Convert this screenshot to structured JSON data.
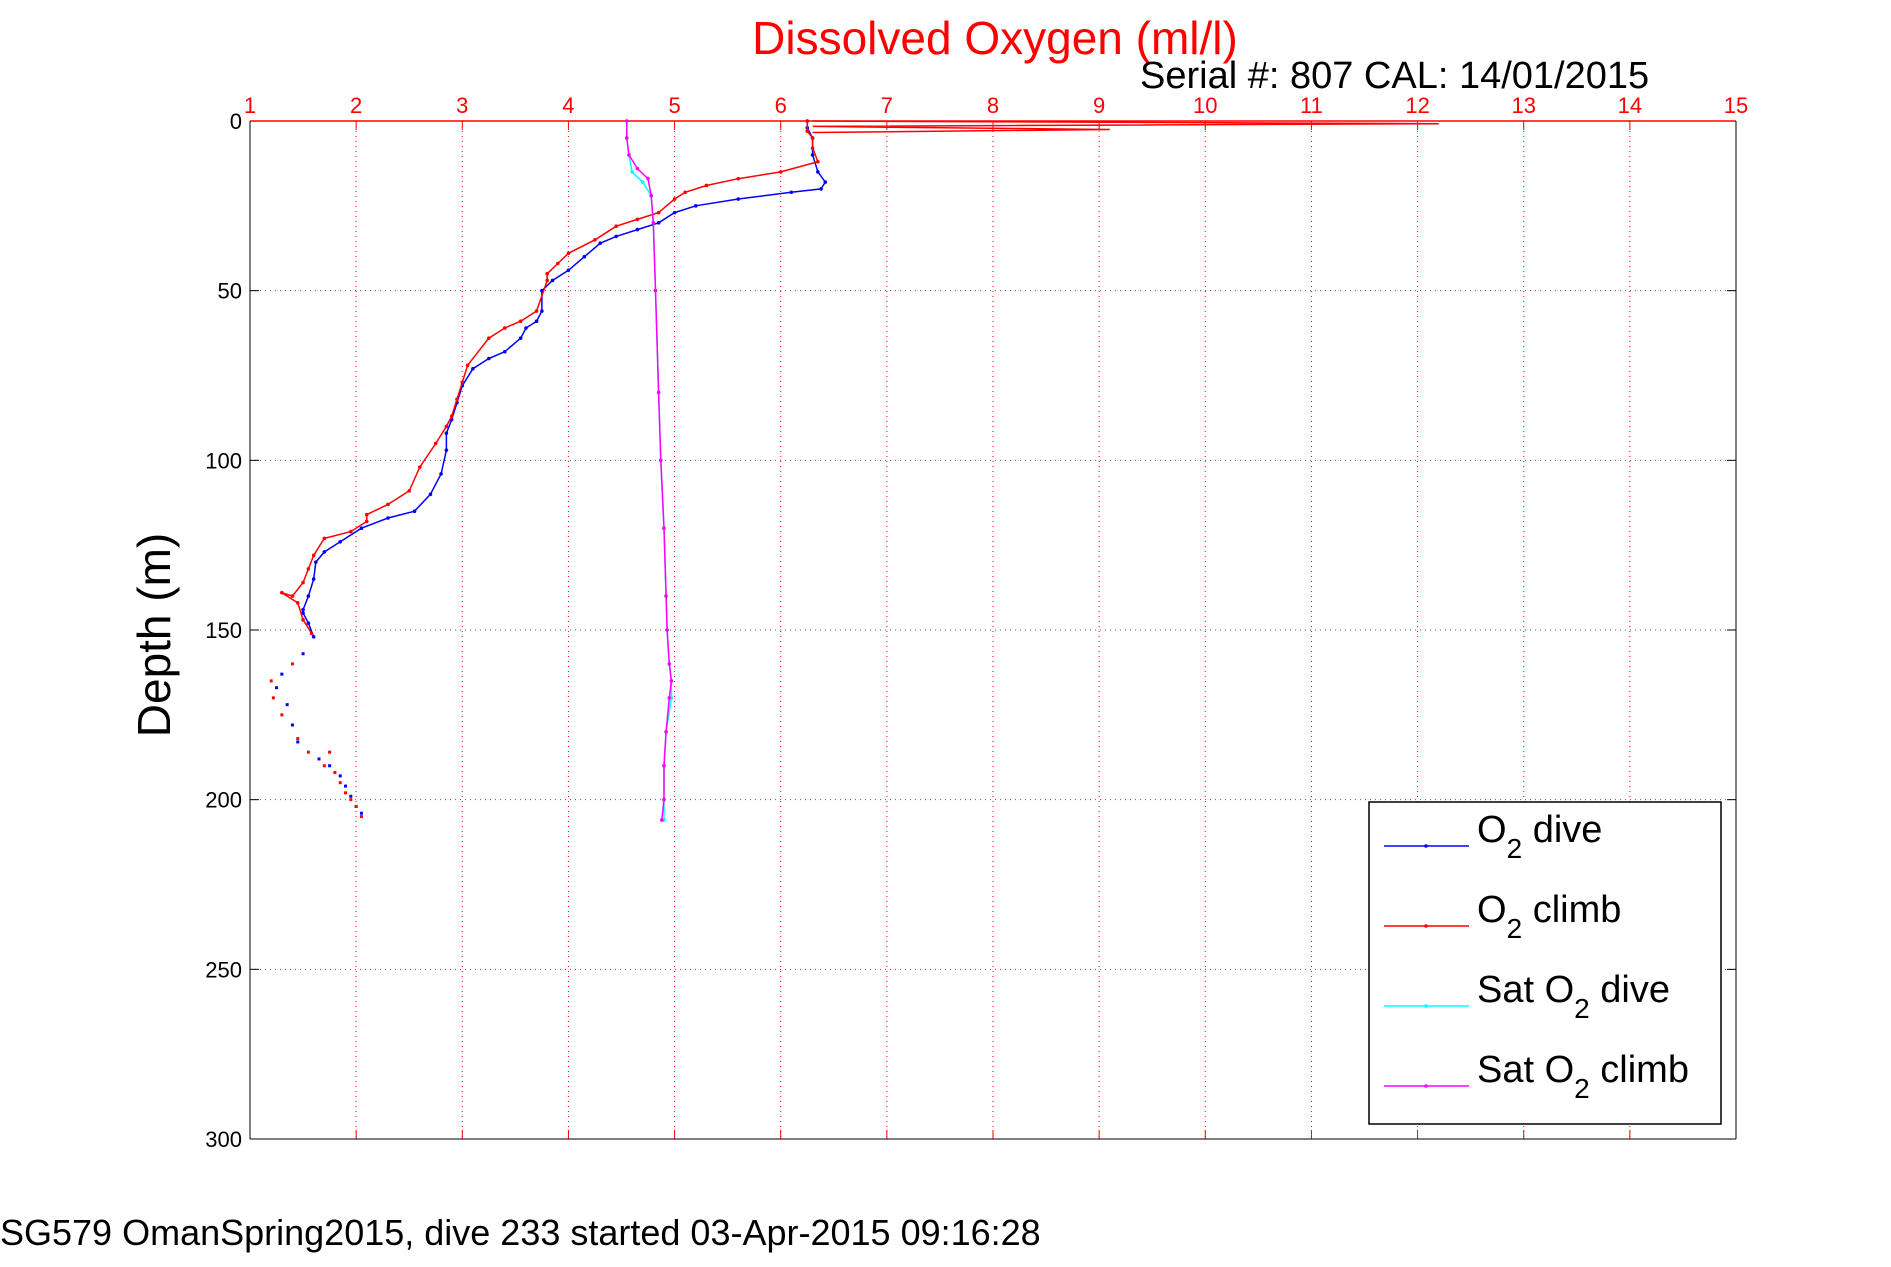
{
  "chart_data": {
    "type": "line",
    "title": "Dissolved Oxygen (ml/l)",
    "subtitle": "Serial #: 807  CAL: 14/01/2015",
    "footer": "SG579 OmanSpring2015, dive 233 started 03-Apr-2015 09:16:28",
    "xlabel": "",
    "ylabel": "Depth (m)",
    "xlim": [
      1,
      15
    ],
    "ylim": [
      0,
      300
    ],
    "y_reversed": true,
    "x_axis_position": "top",
    "x_ticks": [
      "1",
      "2",
      "3",
      "4",
      "5",
      "6",
      "7",
      "8",
      "9",
      "10",
      "11",
      "12",
      "13",
      "14",
      "15"
    ],
    "y_ticks": [
      "0",
      "50",
      "100",
      "150",
      "200",
      "250",
      "300"
    ],
    "grid": true,
    "legend_position": "bottom-right",
    "colors": {
      "title": "#ff0000",
      "x_axis": "#ff0000",
      "y_axis": "#000000",
      "grid": "#555555",
      "x_grid": "#ff0000"
    },
    "legend": [
      {
        "sym": "O",
        "sub": "2",
        "suffix": " dive",
        "color": "#0000ff"
      },
      {
        "sym": "O",
        "sub": "2",
        "suffix": " climb",
        "color": "#ff0000"
      },
      {
        "sym": "Sat O",
        "sub": "2",
        "suffix": " dive",
        "color": "#00ffff"
      },
      {
        "sym": "Sat O",
        "sub": "2",
        "suffix": " climb",
        "color": "#ff00ff"
      }
    ],
    "series": [
      {
        "key": "o2_dive",
        "color": "#0000ff",
        "x": [
          6.25,
          6.25,
          6.3,
          6.3,
          6.35,
          6.42,
          6.38,
          6.1,
          5.6,
          5.2,
          5.0,
          4.85,
          4.65,
          4.45,
          4.3,
          4.15,
          4.0,
          3.85,
          3.75,
          3.75,
          3.7,
          3.6,
          3.55,
          3.4,
          3.25,
          3.1,
          3.0,
          2.95,
          2.9,
          2.85,
          2.85,
          2.8,
          2.7,
          2.55,
          2.3,
          2.05,
          1.85,
          1.7,
          1.62,
          1.6,
          1.55,
          1.5,
          1.5,
          1.55,
          1.6
        ],
        "y": [
          0,
          2,
          5,
          10,
          15,
          18,
          20,
          21,
          23,
          25,
          27,
          30,
          32,
          34,
          36,
          40,
          44,
          47,
          50,
          56,
          59,
          61,
          64,
          68,
          70,
          73,
          78,
          83,
          88,
          92,
          97,
          104,
          110,
          115,
          117,
          120,
          124,
          127,
          130,
          135,
          140,
          144,
          145,
          148,
          152
        ]
      },
      {
        "key": "o2_climb",
        "color": "#ff0000",
        "x": [
          6.25,
          6.25,
          6.3,
          6.3,
          6.35,
          6.0,
          5.6,
          5.3,
          5.1,
          5.0,
          4.85,
          4.65,
          4.45,
          4.25,
          4.0,
          3.9,
          3.8,
          3.8,
          3.7,
          3.55,
          3.4,
          3.25,
          3.05,
          3.0,
          2.95,
          2.9,
          2.85,
          2.75,
          2.6,
          2.5,
          2.3,
          2.1,
          2.1,
          1.95,
          1.7,
          1.6,
          1.55,
          1.5,
          1.4,
          1.3,
          1.45,
          1.5,
          1.58
        ],
        "y": [
          0,
          3,
          5,
          8,
          12,
          15,
          17,
          19,
          21,
          23,
          27,
          29,
          31,
          35,
          39,
          42,
          45,
          47,
          56,
          59,
          61,
          64,
          72,
          77,
          82,
          87,
          90,
          95,
          102,
          109,
          113,
          116,
          118,
          121,
          123,
          128,
          132,
          136,
          140,
          139,
          142,
          147,
          151
        ]
      },
      {
        "key": "sat_dive",
        "color": "#00ffff",
        "x": [
          4.55,
          4.55,
          4.57,
          4.6,
          4.7,
          4.78,
          4.8,
          4.82,
          4.85,
          4.87,
          4.9,
          4.92,
          4.93,
          4.95,
          4.97,
          4.97,
          4.92,
          4.9,
          4.9,
          4.9
        ],
        "y": [
          0,
          5,
          10,
          15,
          18,
          22,
          30,
          50,
          80,
          100,
          120,
          140,
          150,
          160,
          165,
          170,
          180,
          190,
          200,
          206
        ]
      },
      {
        "key": "sat_climb",
        "color": "#ff00ff",
        "x": [
          4.55,
          4.55,
          4.57,
          4.65,
          4.75,
          4.78,
          4.8,
          4.82,
          4.85,
          4.87,
          4.9,
          4.92,
          4.93,
          4.95,
          4.97,
          4.95,
          4.92,
          4.9,
          4.9,
          4.88
        ],
        "y": [
          0,
          5,
          10,
          14,
          17,
          22,
          30,
          50,
          80,
          100,
          120,
          140,
          150,
          160,
          165,
          170,
          180,
          190,
          200,
          206
        ]
      }
    ],
    "spike_series": {
      "color": "#ff0000",
      "x": [
        6.3,
        12.2,
        6.3,
        9.1,
        6.3
      ],
      "y": [
        0,
        0.8,
        1.6,
        2.5,
        3.4
      ]
    },
    "scatter_points": {
      "o2_dive": {
        "color": "#0000ff",
        "x": [
          1.5,
          1.3,
          1.25,
          1.35,
          1.4,
          1.45,
          1.65,
          1.75,
          1.85,
          1.9,
          1.95,
          2.0,
          2.05
        ],
        "y": [
          157,
          163,
          167,
          172,
          178,
          183,
          188,
          190,
          193,
          196,
          199,
          202,
          204
        ]
      },
      "o2_climb": {
        "color": "#ff0000",
        "x": [
          1.4,
          1.2,
          1.22,
          1.3,
          1.45,
          1.55,
          1.7,
          1.75,
          1.8,
          1.85,
          1.9,
          1.95,
          2.0,
          2.05
        ],
        "y": [
          160,
          165,
          170,
          175,
          182,
          186,
          190,
          186,
          192,
          195,
          198,
          200,
          202,
          205
        ]
      }
    }
  }
}
